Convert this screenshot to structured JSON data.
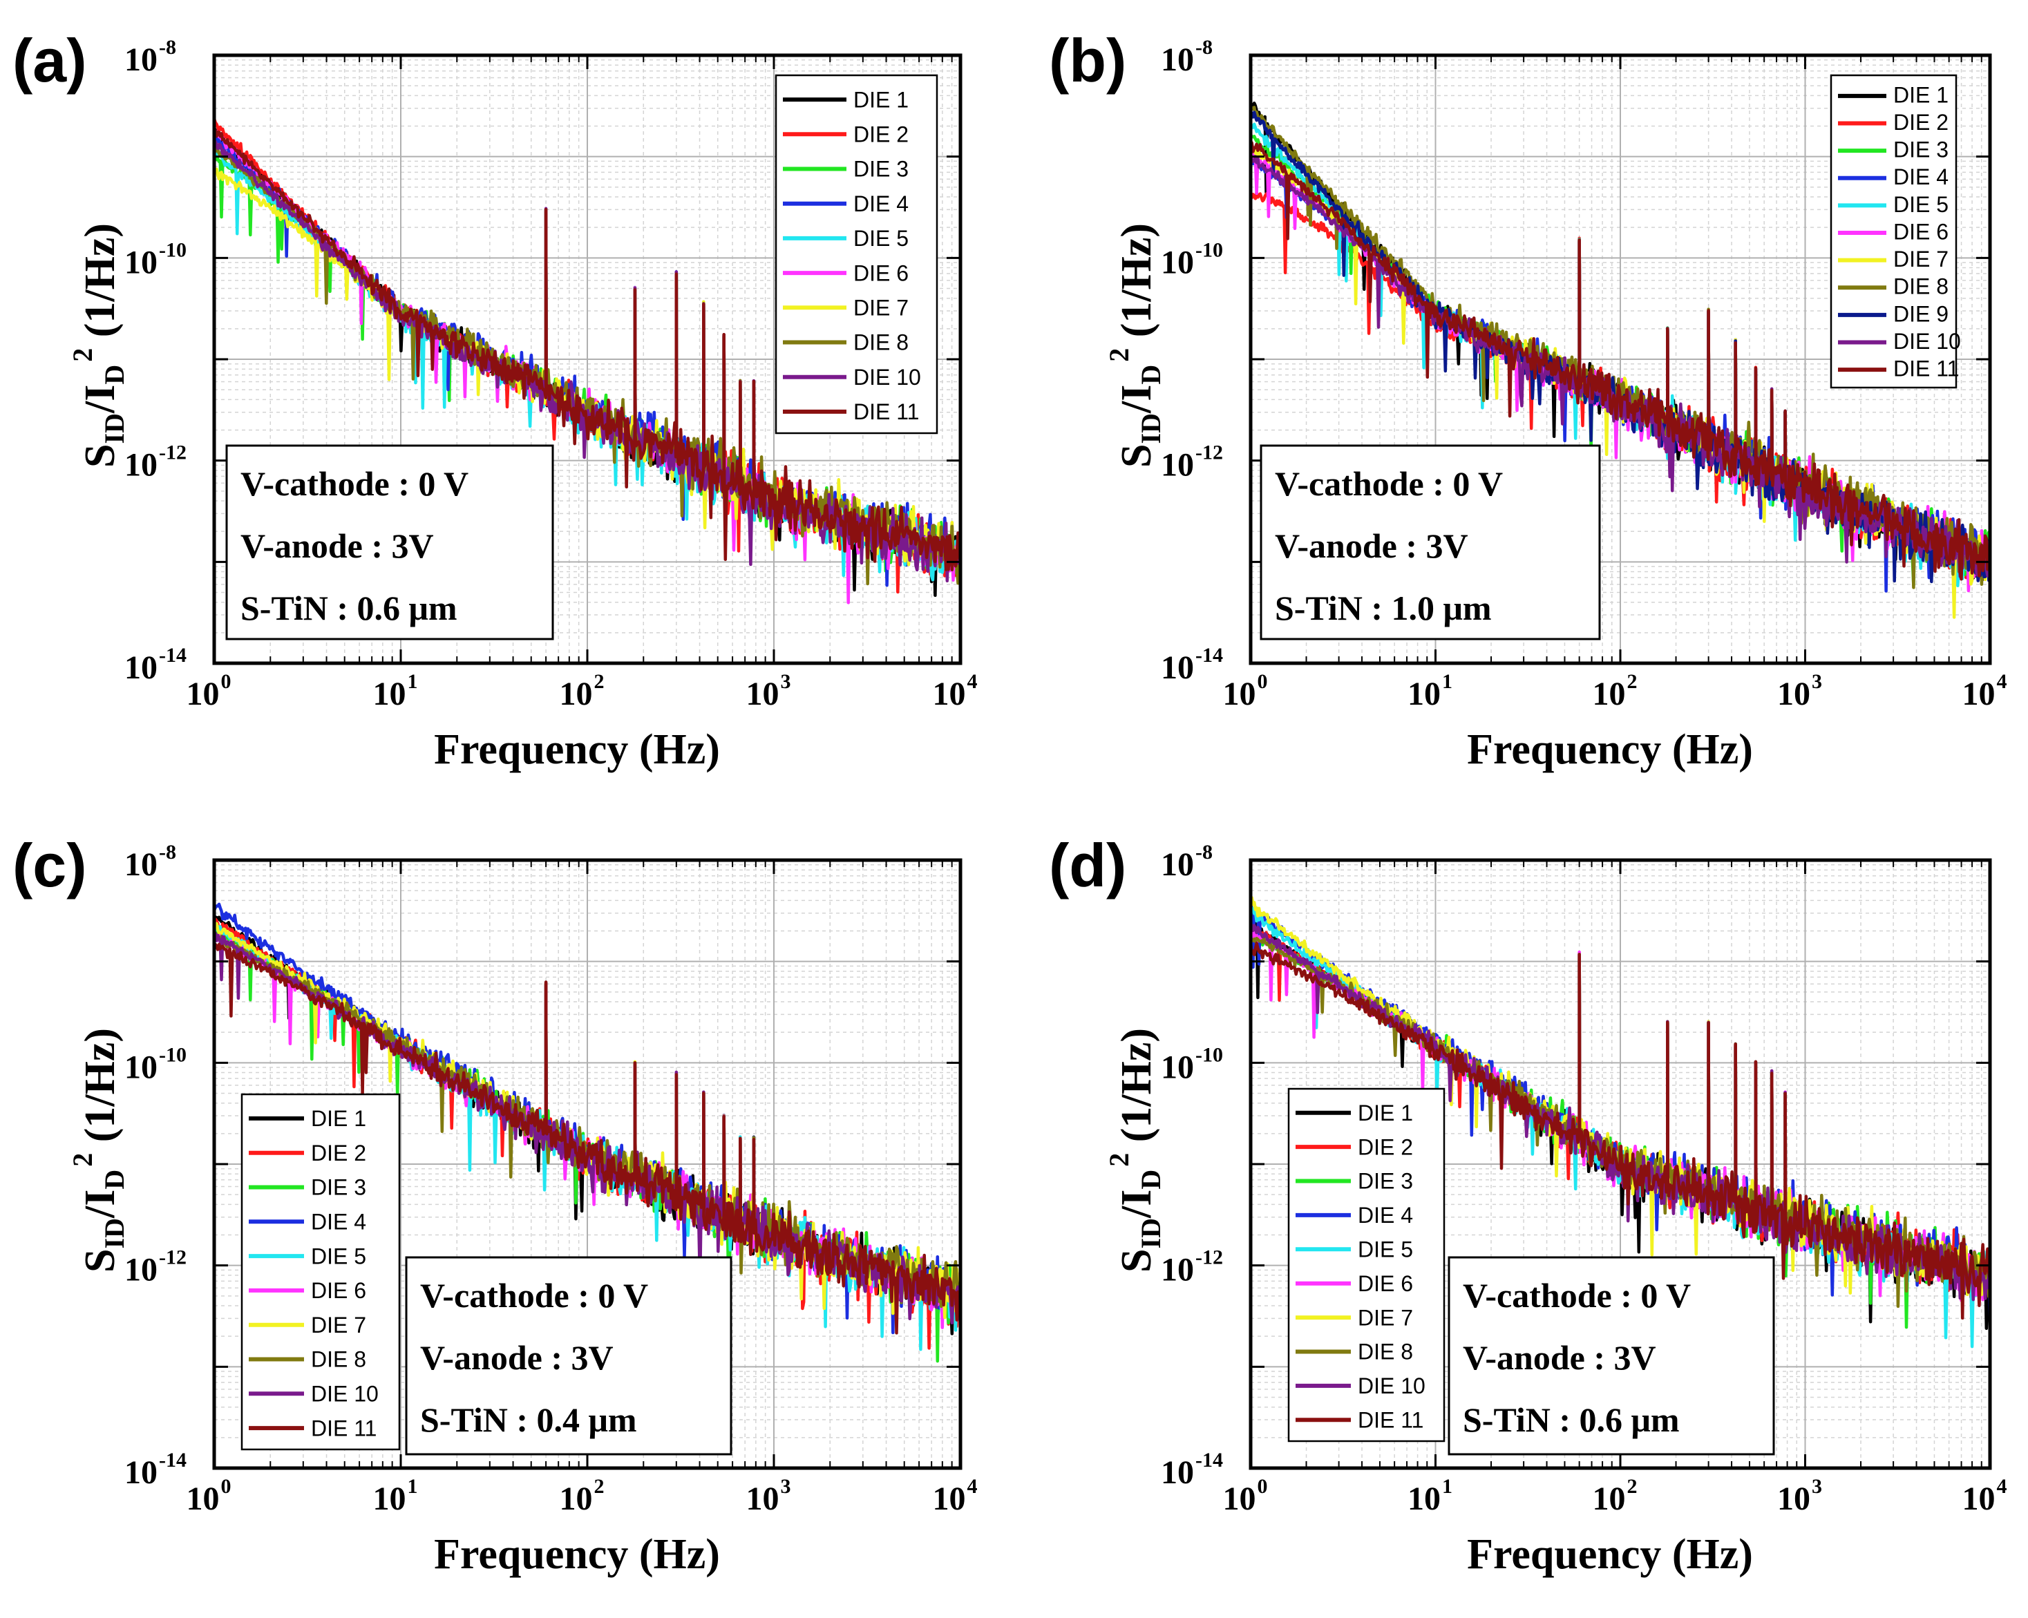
{
  "colors": {
    "DIE 1": "#000000",
    "DIE 2": "#ff1a1a",
    "DIE 3": "#22e622",
    "DIE 4": "#1c2fe0",
    "DIE 5": "#22e6f0",
    "DIE 6": "#ff33ff",
    "DIE 7": "#f2f222",
    "DIE 8": "#807a10",
    "DIE 9": "#0a1a8c",
    "DIE 10": "#7a1a8c",
    "DIE 11": "#8a1010"
  },
  "x_tick_labels": [
    {
      "base": "10",
      "exp": "0"
    },
    {
      "base": "10",
      "exp": "1"
    },
    {
      "base": "10",
      "exp": "2"
    },
    {
      "base": "10",
      "exp": "3"
    },
    {
      "base": "10",
      "exp": "4"
    }
  ],
  "y_tick_labels": [
    {
      "base": "10",
      "exp": "-8"
    },
    {
      "base": "10",
      "exp": "-10"
    },
    {
      "base": "10",
      "exp": "-12"
    },
    {
      "base": "10",
      "exp": "-14"
    }
  ],
  "xlabel": "Frequency (Hz)",
  "ylabel": {
    "s": "S",
    "s_sub": "ID",
    "mid": "/I",
    "i_sub": "D",
    "sup": "2",
    "unit": " (1/Hz)"
  },
  "chart_data": [
    {
      "panel": "(a)",
      "type": "line",
      "xscale": "log",
      "yscale": "log",
      "xlim": [
        1,
        10000
      ],
      "ylim": [
        1e-14,
        1e-08
      ],
      "xlabel": "Frequency (Hz)",
      "ylabel": "SID/ID2 (1/Hz)",
      "legend_position": "top-right",
      "annotation": [
        "V-cathode : 0 V",
        "V-anode : 3V",
        "S-TiN : 0.6 μm"
      ],
      "trend": {
        "x": [
          1,
          10,
          100,
          1000,
          10000
        ],
        "y": [
          2e-09,
          3e-11,
          3e-12,
          4e-13,
          1.2e-13
        ]
      },
      "harmonic_peaks": {
        "x": [
          60,
          180,
          300,
          420,
          540,
          660,
          780
        ],
        "y": [
          3e-10,
          5e-11,
          7e-11,
          3.5e-11,
          1.7e-11,
          6e-12,
          6e-12
        ]
      },
      "series": [
        {
          "name": "DIE 1",
          "start": 2e-09
        },
        {
          "name": "DIE 2",
          "start": 2.2e-09
        },
        {
          "name": "DIE 3",
          "start": 1e-09
        },
        {
          "name": "DIE 4",
          "start": 1.4e-09
        },
        {
          "name": "DIE 5",
          "start": 1.2e-09
        },
        {
          "name": "DIE 6",
          "start": 1.8e-09
        },
        {
          "name": "DIE 7",
          "start": 7e-10
        },
        {
          "name": "DIE 8",
          "start": 1.1e-09
        },
        {
          "name": "DIE 10",
          "start": 1.5e-09
        },
        {
          "name": "DIE 11",
          "start": 1.9e-09
        }
      ]
    },
    {
      "panel": "(b)",
      "type": "line",
      "xscale": "log",
      "yscale": "log",
      "xlim": [
        1,
        10000
      ],
      "ylim": [
        1e-14,
        1e-08
      ],
      "xlabel": "Frequency (Hz)",
      "ylabel": "SID/ID2 (1/Hz)",
      "legend_position": "top-right",
      "annotation": [
        "V-cathode : 0 V",
        "V-anode : 3V",
        "S-TiN : 1.0 μm"
      ],
      "trend": {
        "x": [
          1,
          10,
          100,
          1000,
          10000
        ],
        "y": [
          3e-09,
          3e-11,
          4e-12,
          5e-13,
          1e-13
        ]
      },
      "harmonic_peaks": {
        "x": [
          60,
          180,
          300,
          420,
          540,
          660,
          780
        ],
        "y": [
          1.5e-10,
          2e-11,
          3e-11,
          1.5e-11,
          8e-12,
          5e-12,
          3e-12
        ]
      },
      "series": [
        {
          "name": "DIE 1",
          "start": 3.5e-09
        },
        {
          "name": "DIE 2",
          "start": 4.5e-10
        },
        {
          "name": "DIE 3",
          "start": 1.6e-09
        },
        {
          "name": "DIE 4",
          "start": 8e-10
        },
        {
          "name": "DIE 5",
          "start": 2.2e-09
        },
        {
          "name": "DIE 6",
          "start": 1.1e-09
        },
        {
          "name": "DIE 7",
          "start": 1.2e-09
        },
        {
          "name": "DIE 8",
          "start": 2.8e-09
        },
        {
          "name": "DIE 9",
          "start": 3e-09
        },
        {
          "name": "DIE 10",
          "start": 1e-09
        },
        {
          "name": "DIE 11",
          "start": 1.3e-09
        }
      ]
    },
    {
      "panel": "(c)",
      "type": "line",
      "xscale": "log",
      "yscale": "log",
      "xlim": [
        1,
        10000
      ],
      "ylim": [
        1e-14,
        1e-08
      ],
      "xlabel": "Frequency (Hz)",
      "ylabel": "SID/ID2 (1/Hz)",
      "legend_position": "bottom-left",
      "annotation": [
        "V-cathode : 0 V",
        "V-anode : 3V",
        "S-TiN : 0.4 μm"
      ],
      "trend": {
        "x": [
          1,
          10,
          100,
          1000,
          10000
        ],
        "y": [
          2.5e-09,
          1.5e-10,
          1.2e-11,
          2e-12,
          5e-13
        ]
      },
      "harmonic_peaks": {
        "x": [
          60,
          180,
          300,
          420,
          540,
          660,
          780
        ],
        "y": [
          6e-10,
          1e-10,
          8e-11,
          5e-11,
          3e-11,
          1.8e-11,
          1.8e-11
        ]
      },
      "series": [
        {
          "name": "DIE 1",
          "start": 3e-09
        },
        {
          "name": "DIE 2",
          "start": 2.6e-09
        },
        {
          "name": "DIE 3",
          "start": 2e-09
        },
        {
          "name": "DIE 4",
          "start": 3.2e-09
        },
        {
          "name": "DIE 5",
          "start": 2.4e-09
        },
        {
          "name": "DIE 6",
          "start": 1.8e-09
        },
        {
          "name": "DIE 7",
          "start": 2.2e-09
        },
        {
          "name": "DIE 8",
          "start": 1.6e-09
        },
        {
          "name": "DIE 10",
          "start": 2e-09
        },
        {
          "name": "DIE 11",
          "start": 1.5e-09
        }
      ]
    },
    {
      "panel": "(d)",
      "type": "line",
      "xscale": "log",
      "yscale": "log",
      "xlim": [
        1,
        10000
      ],
      "ylim": [
        1e-14,
        1e-08
      ],
      "xlabel": "Frequency (Hz)",
      "ylabel": "SID/ID2 (1/Hz)",
      "legend_position": "bottom-left",
      "annotation": [
        "V-cathode : 0 V",
        "V-anode : 3V",
        "S-TiN : 0.6 μm"
      ],
      "trend": {
        "x": [
          1,
          10,
          100,
          1000,
          10000
        ],
        "y": [
          2.5e-09,
          1.5e-10,
          1e-11,
          2.5e-12,
          8e-13
        ]
      },
      "harmonic_peaks": {
        "x": [
          60,
          180,
          300,
          420,
          540,
          660,
          780
        ],
        "y": [
          1.2e-09,
          2.5e-10,
          2.5e-10,
          1.5e-10,
          1e-10,
          8e-11,
          5e-11
        ]
      },
      "series": [
        {
          "name": "DIE 1",
          "start": 2.6e-09
        },
        {
          "name": "DIE 2",
          "start": 2.2e-09
        },
        {
          "name": "DIE 3",
          "start": 1.8e-09
        },
        {
          "name": "DIE 4",
          "start": 3e-09
        },
        {
          "name": "DIE 5",
          "start": 3.4e-09
        },
        {
          "name": "DIE 6",
          "start": 2e-09
        },
        {
          "name": "DIE 7",
          "start": 3.6e-09
        },
        {
          "name": "DIE 8",
          "start": 1.6e-09
        },
        {
          "name": "DIE 10",
          "start": 2.4e-09
        },
        {
          "name": "DIE 11",
          "start": 1.4e-09
        }
      ]
    }
  ]
}
